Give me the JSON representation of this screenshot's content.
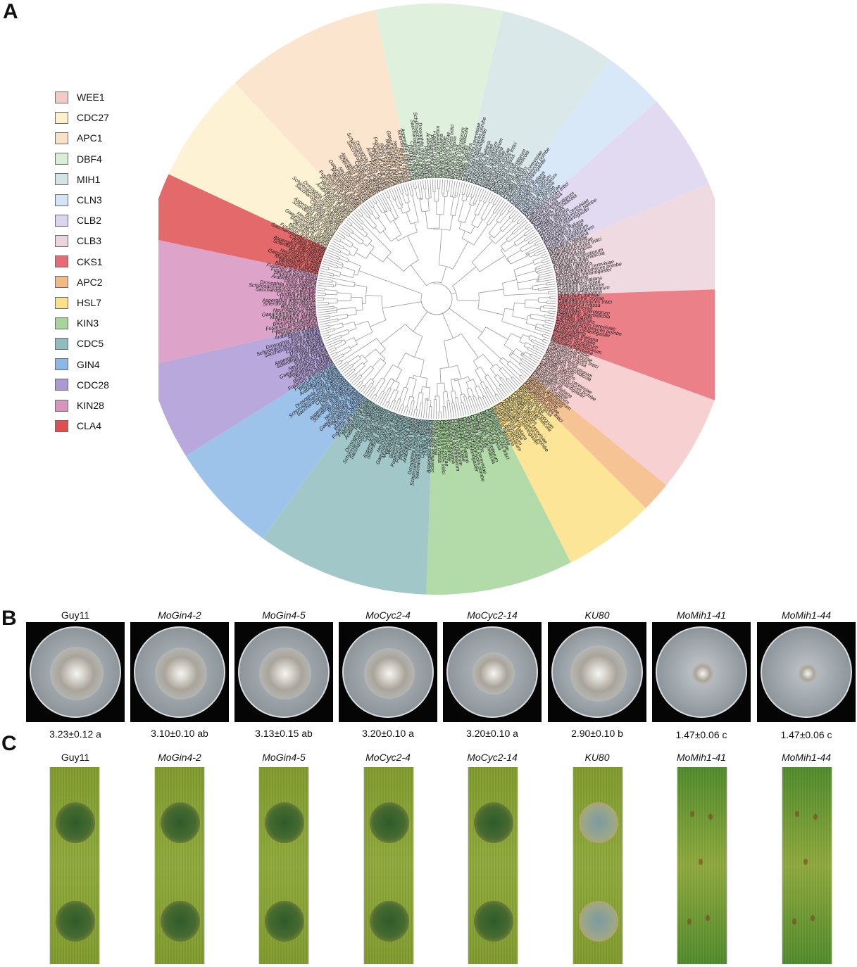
{
  "panels": {
    "a": "A",
    "b": "B",
    "c": "C"
  },
  "legend": [
    {
      "label": "WEE1",
      "color": "#f6c9c9"
    },
    {
      "label": "CDC27",
      "color": "#fdf1cc"
    },
    {
      "label": "APC1",
      "color": "#fbe0c6"
    },
    {
      "label": "DBF4",
      "color": "#d9eed6"
    },
    {
      "label": "MIH1",
      "color": "#d3e4e6"
    },
    {
      "label": "CLN3",
      "color": "#d2e4f7"
    },
    {
      "label": "CLB2",
      "color": "#ddd4ef"
    },
    {
      "label": "CLB3",
      "color": "#ecd3dd"
    },
    {
      "label": "CKS1",
      "color": "#e86a74"
    },
    {
      "label": "APC2",
      "color": "#f4b882"
    },
    {
      "label": "HSL7",
      "color": "#fbe084"
    },
    {
      "label": "KIN3",
      "color": "#a6d49a"
    },
    {
      "label": "CDC5",
      "color": "#90bdbf"
    },
    {
      "label": "GIN4",
      "color": "#8cb8e6"
    },
    {
      "label": "CDC28",
      "color": "#ab99d6"
    },
    {
      "label": "KIN28",
      "color": "#d893be"
    },
    {
      "label": "CLA4",
      "color": "#df4f50"
    }
  ],
  "tree_species": [
    "Fusarium graminearum",
    "Beauveria bassiana",
    "Verticillium dahliae",
    "Magnaporthe oryzae",
    "Gaeumannomyces tritici",
    "Neurospora crassa",
    "Botrytis cinerea",
    "Sclerotinia sclerotiorum",
    "Aspergillus arachidicola",
    "Ustilago maydis",
    "Candida albicans",
    "Saccharomyces cerevisiae",
    "Schizosaccharomyces pombe",
    "Drosophila melanogaster",
    "Homo sapiens",
    "Arabidopsis thaliana",
    "Phytophthora sojae",
    "Fusarium oxysporum"
  ],
  "strains": [
    {
      "name": "Guy11",
      "italic": false,
      "colony": "3.23±0.12 a"
    },
    {
      "name": "MoGin4-2",
      "italic": true,
      "colony": "3.10±0.10 ab"
    },
    {
      "name": "MoGin4-5",
      "italic": true,
      "colony": "3.13±0.15 ab"
    },
    {
      "name": "MoCyc2-4",
      "italic": true,
      "colony": "3.20±0.10 a"
    },
    {
      "name": "MoCyc2-14",
      "italic": true,
      "colony": "3.20±0.10 a"
    },
    {
      "name": "KU80",
      "italic": true,
      "colony": "2.90±0.10 b"
    },
    {
      "name": "MoMih1-41",
      "italic": true,
      "colony": "1.47±0.06 c"
    },
    {
      "name": "MoMih1-44",
      "italic": true,
      "colony": "1.47±0.06 c"
    }
  ]
}
